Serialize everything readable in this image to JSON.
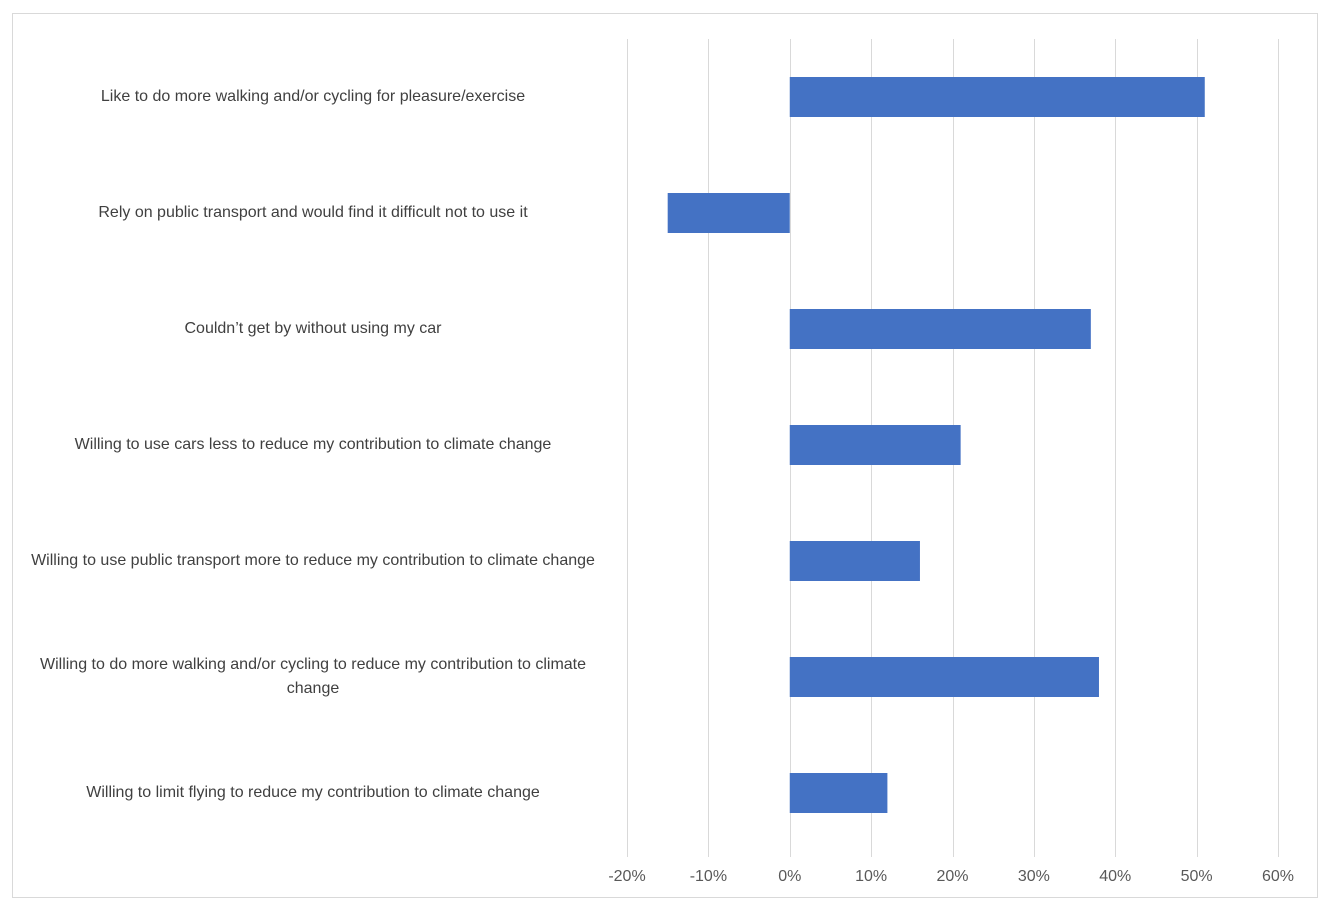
{
  "chart_data": {
    "type": "bar",
    "orientation": "horizontal",
    "title": "",
    "xlabel": "",
    "ylabel": "",
    "categories": [
      "Like to do more walking and/or cycling for pleasure/exercise",
      "Rely on public transport and would find it difficult not to use it",
      "Couldn’t get by without using my car",
      "Willing to use cars less to reduce my contribution to climate change",
      "Willing to use public transport more to reduce my contribution to climate change",
      "Willing to do more walking and/or cycling to reduce my contribution to climate change",
      "Willing to limit flying to reduce my contribution to climate change"
    ],
    "values": [
      51,
      -15,
      37,
      21,
      16,
      38,
      12
    ],
    "xlim": [
      -20,
      60
    ],
    "ticks": [
      -20,
      -10,
      0,
      10,
      20,
      30,
      40,
      50,
      60
    ],
    "tick_labels": [
      "-20%",
      "-10%",
      "0%",
      "10%",
      "20%",
      "30%",
      "40%",
      "50%",
      "60%"
    ],
    "value_unit": "%",
    "grid": true,
    "legend": "none",
    "bar_color": "#4472c4",
    "grid_color": "#d9d9d9"
  }
}
